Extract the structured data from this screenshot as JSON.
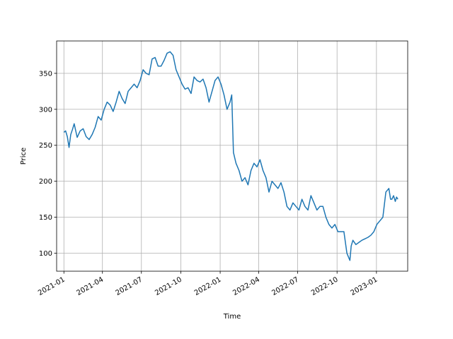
{
  "chart_data": {
    "type": "line",
    "title": "",
    "xlabel": "Time",
    "ylabel": "Price",
    "grid": true,
    "legend": "none",
    "xlim": [
      "2020-12-15",
      "2023-03-15"
    ],
    "ylim": [
      75,
      395
    ],
    "xticks": [
      "2021-01",
      "2021-04",
      "2021-07",
      "2021-10",
      "2022-01",
      "2022-04",
      "2022-07",
      "2022-10",
      "2023-01"
    ],
    "yticks": [
      100,
      150,
      200,
      250,
      300,
      350
    ],
    "series_color": "#1f77b4",
    "series": [
      {
        "x": [
          "2021-01-01",
          "2021-01-05",
          "2021-01-09",
          "2021-01-13",
          "2021-01-17",
          "2021-01-21",
          "2021-01-25",
          "2021-02-01",
          "2021-02-08",
          "2021-02-15",
          "2021-02-22",
          "2021-03-01",
          "2021-03-08",
          "2021-03-15",
          "2021-03-22",
          "2021-03-29",
          "2021-04-05",
          "2021-04-12",
          "2021-04-19",
          "2021-04-26",
          "2021-05-03",
          "2021-05-10",
          "2021-05-17",
          "2021-05-24",
          "2021-05-31",
          "2021-06-07",
          "2021-06-14",
          "2021-06-21",
          "2021-06-28",
          "2021-07-05",
          "2021-07-12",
          "2021-07-19",
          "2021-07-26",
          "2021-08-02",
          "2021-08-09",
          "2021-08-16",
          "2021-08-23",
          "2021-08-30",
          "2021-09-06",
          "2021-09-13",
          "2021-09-20",
          "2021-09-27",
          "2021-10-04",
          "2021-10-11",
          "2021-10-18",
          "2021-10-25",
          "2021-11-01",
          "2021-11-08",
          "2021-11-15",
          "2021-11-22",
          "2021-11-29",
          "2021-12-06",
          "2021-12-13",
          "2021-12-20",
          "2021-12-27",
          "2022-01-03",
          "2022-01-10",
          "2022-01-17",
          "2022-01-24",
          "2022-01-28",
          "2022-02-01",
          "2022-02-07",
          "2022-02-14",
          "2022-02-21",
          "2022-02-28",
          "2022-03-07",
          "2022-03-14",
          "2022-03-21",
          "2022-03-28",
          "2022-04-04",
          "2022-04-11",
          "2022-04-18",
          "2022-04-25",
          "2022-05-02",
          "2022-05-09",
          "2022-05-16",
          "2022-05-23",
          "2022-05-30",
          "2022-06-06",
          "2022-06-13",
          "2022-06-20",
          "2022-06-27",
          "2022-07-04",
          "2022-07-11",
          "2022-07-18",
          "2022-07-25",
          "2022-08-01",
          "2022-08-08",
          "2022-08-15",
          "2022-08-22",
          "2022-08-29",
          "2022-09-05",
          "2022-09-12",
          "2022-09-19",
          "2022-09-26",
          "2022-10-03",
          "2022-10-10",
          "2022-10-17",
          "2022-10-24",
          "2022-10-31",
          "2022-11-03",
          "2022-11-07",
          "2022-11-14",
          "2022-11-21",
          "2022-11-28",
          "2022-12-05",
          "2022-12-12",
          "2022-12-19",
          "2022-12-26",
          "2023-01-02",
          "2023-01-09",
          "2023-01-16",
          "2023-01-23",
          "2023-01-30",
          "2023-02-03",
          "2023-02-06",
          "2023-02-10",
          "2023-02-14",
          "2023-02-17",
          "2023-02-20"
        ],
        "values": [
          268,
          270,
          262,
          247,
          265,
          272,
          280,
          261,
          270,
          273,
          262,
          258,
          265,
          275,
          290,
          285,
          300,
          310,
          306,
          297,
          310,
          325,
          315,
          308,
          325,
          330,
          335,
          330,
          340,
          355,
          350,
          348,
          370,
          372,
          360,
          360,
          368,
          378,
          380,
          375,
          355,
          345,
          335,
          328,
          330,
          322,
          345,
          340,
          338,
          342,
          330,
          310,
          325,
          340,
          345,
          335,
          320,
          300,
          310,
          320,
          240,
          225,
          215,
          200,
          205,
          195,
          215,
          225,
          220,
          230,
          215,
          205,
          185,
          200,
          195,
          190,
          198,
          185,
          165,
          160,
          170,
          165,
          160,
          175,
          165,
          160,
          180,
          170,
          160,
          165,
          165,
          150,
          140,
          135,
          140,
          130,
          130,
          130,
          100,
          90,
          110,
          118,
          112,
          115,
          118,
          120,
          122,
          125,
          130,
          140,
          145,
          150,
          185,
          190,
          175,
          175,
          180,
          172,
          178,
          175
        ]
      }
    ]
  }
}
